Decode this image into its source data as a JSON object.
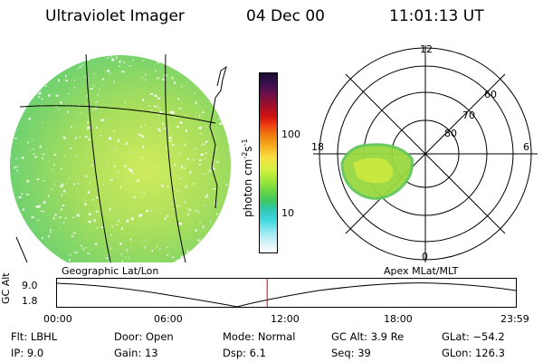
{
  "header": {
    "instrument": "Ultraviolet Imager",
    "date": "04 Dec 00",
    "time": "11:01:13 UT"
  },
  "colorbar": {
    "label": "photon cm",
    "label_sup1": "-2",
    "label_mid": "s",
    "label_sup2": "-1",
    "ticks": [
      "100",
      "10"
    ],
    "colors": [
      "#1a0a33",
      "#3a1050",
      "#70104a",
      "#a0102a",
      "#d01010",
      "#f04010",
      "#f08010",
      "#f8b020",
      "#f8e040",
      "#d8f040",
      "#a8e838",
      "#70d840",
      "#40c860",
      "#30c8b0",
      "#40d8e0",
      "#90e8f0",
      "#d0f0f8",
      "#ffffff"
    ]
  },
  "panels": {
    "left_label": "Geographic Lat/Lon",
    "right_label": "Apex MLat/MLT"
  },
  "polar": {
    "mlt_labels": [
      "12",
      "18",
      "6",
      "0"
    ],
    "lat_labels": [
      "60",
      "70",
      "80"
    ]
  },
  "timeline": {
    "ylabel": "GC Alt",
    "yticks": [
      "9.0",
      "1.8"
    ],
    "xticks": [
      "00:00",
      "06:00",
      "12:00",
      "18:00",
      "23:59"
    ],
    "marker_fraction": 0.458
  },
  "info": {
    "flt": "Flt: LBHL",
    "ip": "IP:  9.0",
    "door": "Door: Open",
    "gain": "Gain: 13",
    "mode": "Mode: Normal",
    "dsp": "Dsp:     6.1",
    "gcalt": "GC Alt: 3.9 Re",
    "seq": "Seq: 39",
    "glat": "GLat: −54.2",
    "glon": "GLon: 126.3"
  }
}
